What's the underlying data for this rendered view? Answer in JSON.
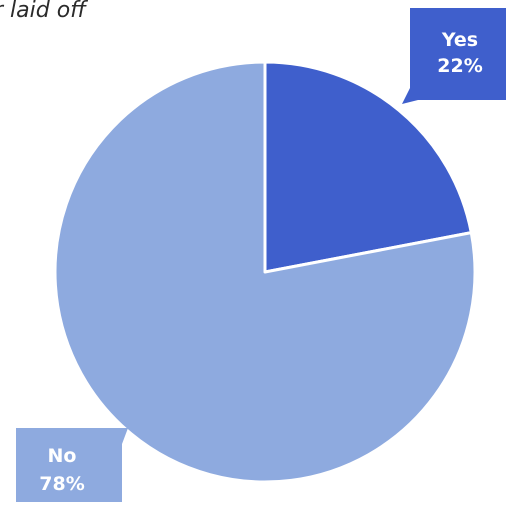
{
  "chart_data": {
    "type": "pie",
    "title": "r laid off",
    "slices": [
      {
        "label": "Yes",
        "value": 22,
        "value_label": "22%",
        "color": "#3f5fcc"
      },
      {
        "label": "No",
        "value": 78,
        "value_label": "78%",
        "color": "#8eaadf"
      }
    ],
    "start_angle": "12 o'clock",
    "direction": "clockwise",
    "legend": "none",
    "data_labels": "callouts"
  }
}
